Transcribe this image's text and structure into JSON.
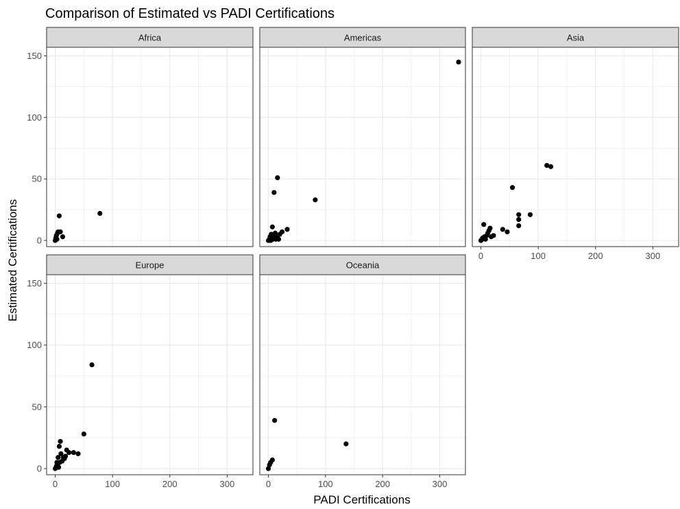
{
  "chart_data": {
    "type": "scatter",
    "title": "Comparison of Estimated vs PADI Certifications",
    "xlabel": "PADI Certifications",
    "ylabel": "Estimated Certifications",
    "xlim": [
      -15,
      345
    ],
    "ylim": [
      -5,
      157
    ],
    "x_ticks": [
      0,
      100,
      200,
      300
    ],
    "y_ticks": [
      0,
      50,
      100,
      150
    ],
    "grid": true,
    "facet_layout": "3 columns x 2 rows",
    "point_color": "#000000",
    "panel_border_color": "#333333",
    "strip_fill": "#d9d9d9",
    "gridline_color": "#ebebeb",
    "facets": [
      {
        "name": "Africa",
        "points": [
          [
            0,
            0
          ],
          [
            1,
            2
          ],
          [
            2,
            4
          ],
          [
            3,
            1
          ],
          [
            4,
            6
          ],
          [
            5,
            7
          ],
          [
            7,
            20
          ],
          [
            9,
            7
          ],
          [
            13,
            3
          ],
          [
            78,
            22
          ]
        ]
      },
      {
        "name": "Americas",
        "points": [
          [
            0,
            0
          ],
          [
            2,
            1
          ],
          [
            3,
            3
          ],
          [
            4,
            0
          ],
          [
            5,
            5
          ],
          [
            6,
            2
          ],
          [
            7,
            11
          ],
          [
            8,
            1
          ],
          [
            9,
            4
          ],
          [
            10,
            39
          ],
          [
            11,
            2
          ],
          [
            12,
            6
          ],
          [
            13,
            1
          ],
          [
            15,
            3
          ],
          [
            16,
            51
          ],
          [
            18,
            1
          ],
          [
            20,
            5
          ],
          [
            24,
            7
          ],
          [
            33,
            9
          ],
          [
            82,
            33
          ],
          [
            333,
            145
          ]
        ]
      },
      {
        "name": "Asia",
        "points": [
          [
            0,
            0
          ],
          [
            2,
            1
          ],
          [
            3,
            2
          ],
          [
            5,
            13
          ],
          [
            6,
            3
          ],
          [
            8,
            1
          ],
          [
            10,
            4
          ],
          [
            12,
            6
          ],
          [
            14,
            8
          ],
          [
            16,
            10
          ],
          [
            18,
            3
          ],
          [
            22,
            4
          ],
          [
            38,
            9
          ],
          [
            46,
            7
          ],
          [
            55,
            43
          ],
          [
            66,
            12
          ],
          [
            66,
            17
          ],
          [
            66,
            21
          ],
          [
            86,
            21
          ],
          [
            115,
            61
          ],
          [
            122,
            60
          ]
        ]
      },
      {
        "name": "Europe",
        "points": [
          [
            0,
            0
          ],
          [
            2,
            2
          ],
          [
            3,
            5
          ],
          [
            4,
            3
          ],
          [
            5,
            9
          ],
          [
            6,
            1
          ],
          [
            7,
            18
          ],
          [
            8,
            5
          ],
          [
            9,
            22
          ],
          [
            10,
            12
          ],
          [
            12,
            6
          ],
          [
            14,
            9
          ],
          [
            16,
            8
          ],
          [
            18,
            10
          ],
          [
            20,
            15
          ],
          [
            24,
            13
          ],
          [
            32,
            13
          ],
          [
            40,
            12
          ],
          [
            50,
            28
          ],
          [
            64,
            84
          ]
        ]
      },
      {
        "name": "Oceania",
        "points": [
          [
            0,
            0
          ],
          [
            2,
            3
          ],
          [
            4,
            5
          ],
          [
            7,
            7
          ],
          [
            11,
            39
          ],
          [
            136,
            20
          ]
        ]
      }
    ]
  }
}
